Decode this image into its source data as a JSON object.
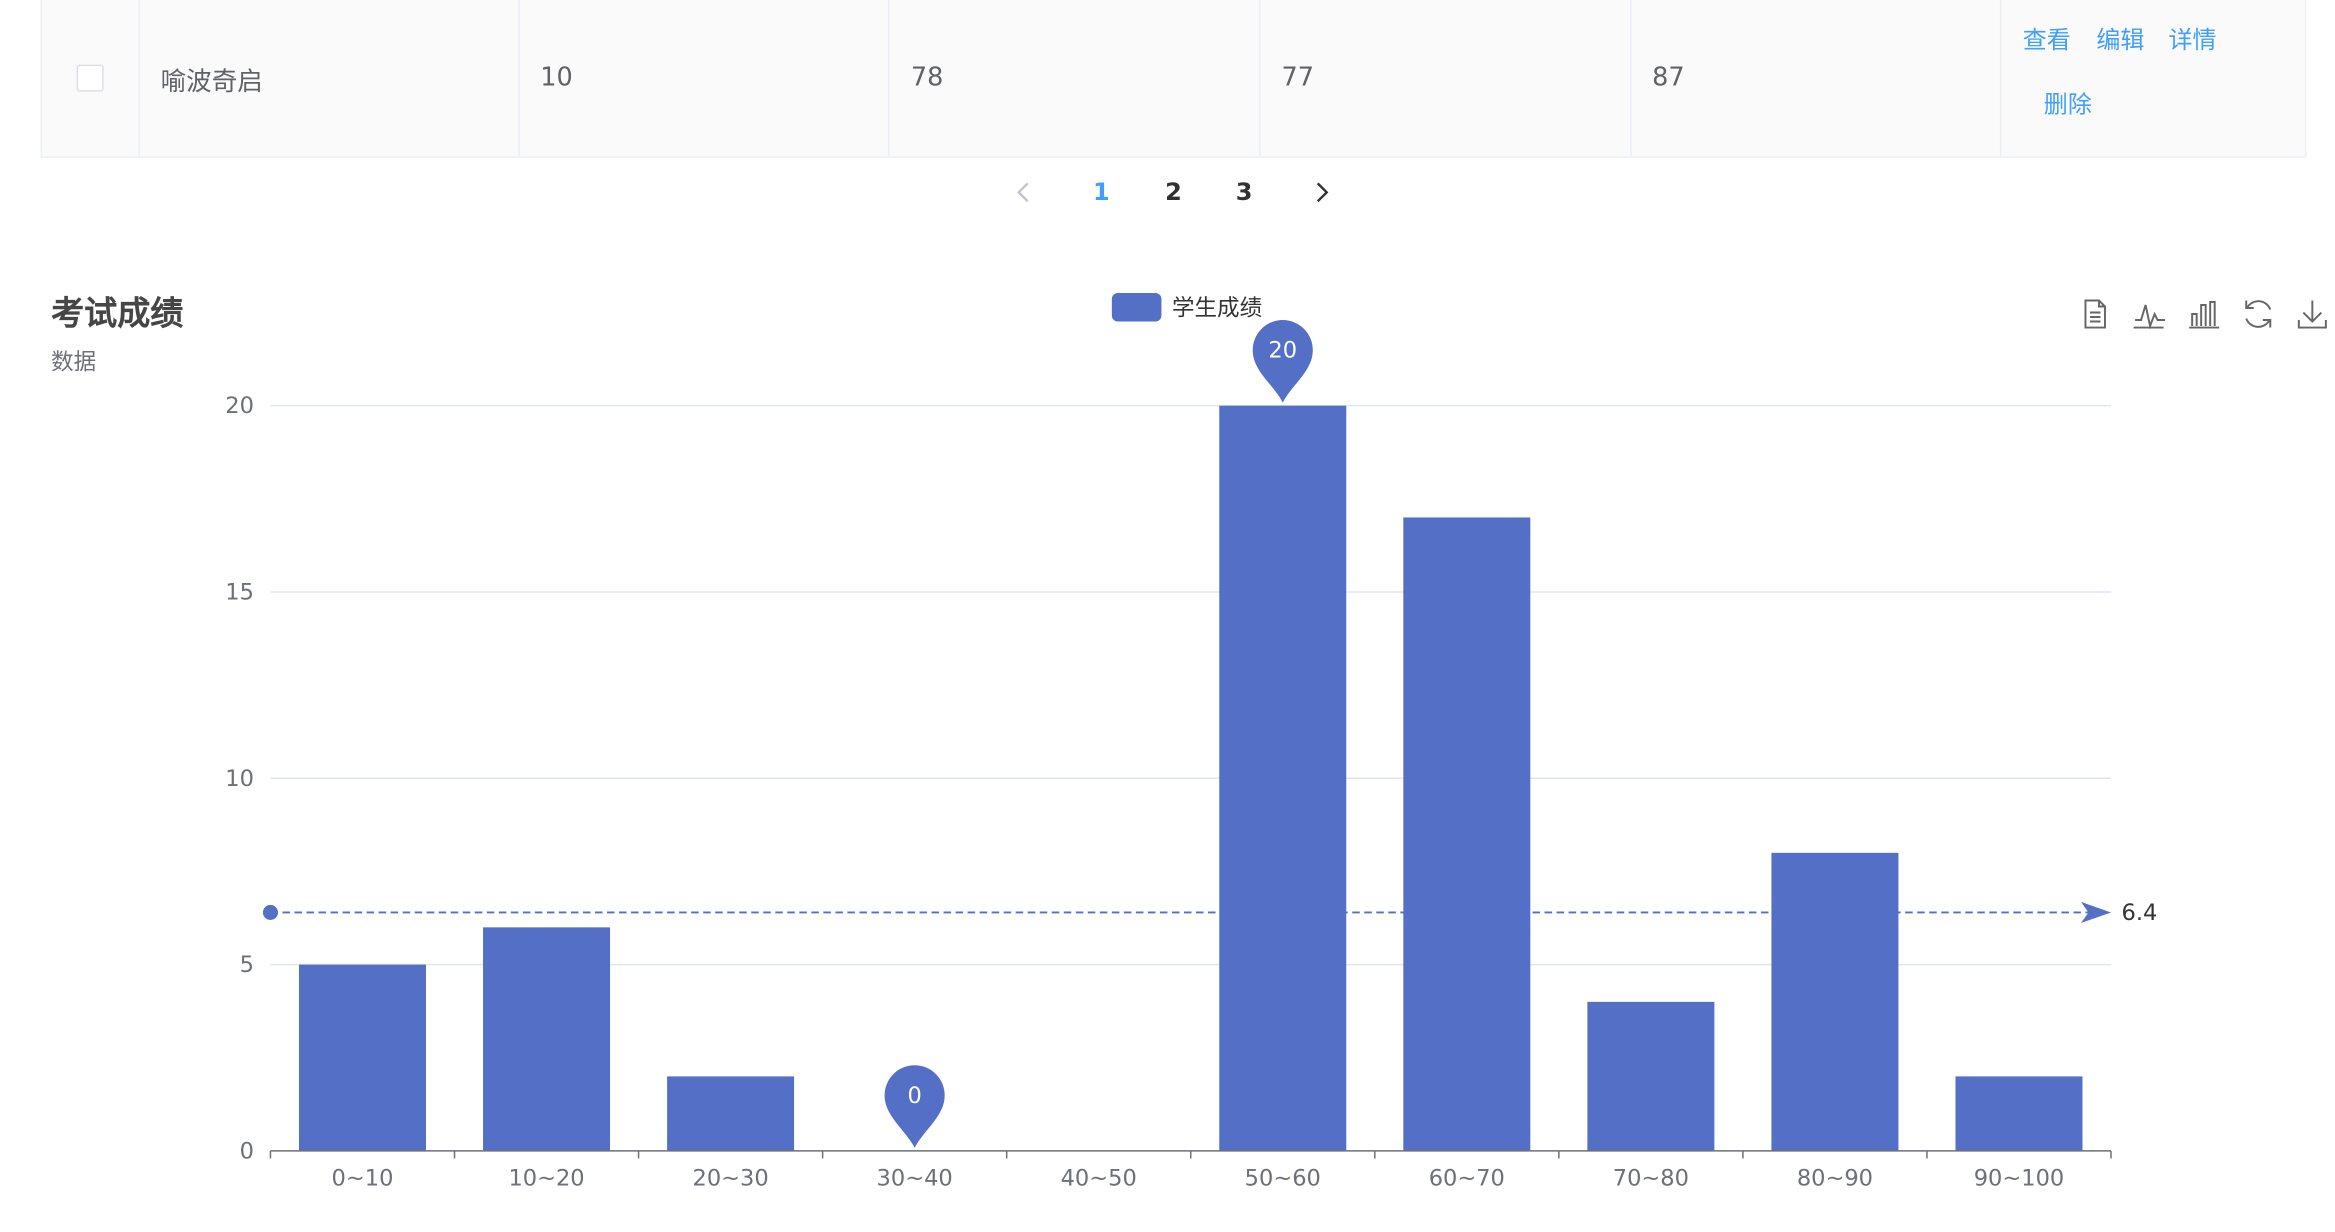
{
  "table": {
    "row": {
      "name": "喻波奇启",
      "col2": "10",
      "col3": "78",
      "col4": "77",
      "col5": "87",
      "actions": [
        "查看",
        "编辑",
        "详情",
        "删除"
      ]
    }
  },
  "pagination": {
    "pages": [
      "1",
      "2",
      "3"
    ],
    "current": "1",
    "prev_icon": "chevron-left-icon",
    "next_icon": "chevron-right-icon"
  },
  "chart": {
    "title": "考试成绩",
    "subtitle": "数据",
    "legend_label": "学生成绩",
    "toolbox_icons": [
      "data-view-icon",
      "line-chart-icon",
      "bar-chart-icon",
      "restore-icon",
      "download-icon"
    ]
  },
  "chart_data": {
    "type": "bar",
    "title": "考试成绩",
    "subtitle": "数据",
    "categories": [
      "0~10",
      "10~20",
      "20~30",
      "30~40",
      "40~50",
      "50~60",
      "60~70",
      "70~80",
      "80~90",
      "90~100"
    ],
    "series": [
      {
        "name": "学生成绩",
        "values": [
          5,
          6,
          2,
          0,
          0,
          20,
          17,
          4,
          8,
          2
        ],
        "color": "#5470c6"
      }
    ],
    "ylim": [
      0,
      20
    ],
    "yticks": [
      0,
      5,
      10,
      15,
      20
    ],
    "grid": true,
    "legend": "top-center",
    "mark_points": [
      {
        "label": "20",
        "category": "50~60",
        "value": 20
      },
      {
        "label": "0",
        "category": "30~40",
        "value": 0
      }
    ],
    "mark_line": {
      "label": "6.4",
      "value": 6.4
    }
  }
}
